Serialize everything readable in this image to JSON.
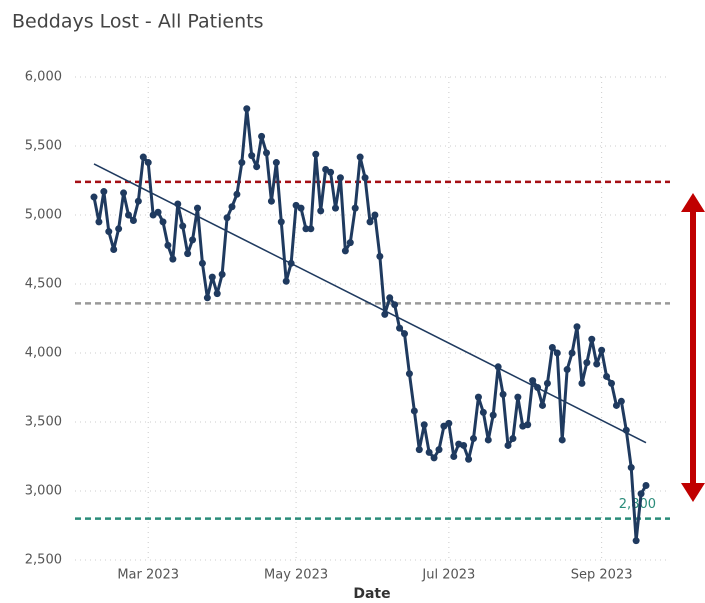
{
  "chart_data": {
    "type": "line",
    "title": "Beddays Lost - All Patients",
    "x_label": "Date",
    "categories": [
      null,
      null,
      null,
      null,
      null,
      null,
      null,
      null,
      null,
      null,
      null,
      "Mar 2023",
      null,
      null,
      null,
      null,
      null,
      null,
      null,
      null,
      null,
      null,
      null,
      null,
      null,
      null,
      null,
      null,
      null,
      null,
      null,
      null,
      null,
      null,
      null,
      null,
      null,
      null,
      null,
      null,
      null,
      "May 2023",
      null,
      null,
      null,
      null,
      null,
      null,
      null,
      null,
      null,
      null,
      null,
      null,
      null,
      null,
      null,
      null,
      null,
      null,
      null,
      null,
      null,
      null,
      null,
      null,
      null,
      null,
      null,
      null,
      null,
      null,
      "Jul 2023",
      null,
      null,
      null,
      null,
      null,
      null,
      null,
      null,
      null,
      null,
      null,
      null,
      null,
      null,
      null,
      null,
      null,
      null,
      null,
      null,
      null,
      null,
      null,
      null,
      null,
      null,
      null,
      null,
      null,
      null,
      "Sep 2023",
      null,
      null,
      null,
      null,
      null,
      null,
      null,
      null,
      null
    ],
    "series": [
      {
        "name": "Beddays Lost",
        "color": "#1f3a5f",
        "values": [
          5130,
          4950,
          5170,
          4880,
          4750,
          4900,
          5160,
          5000,
          4960,
          5100,
          5420,
          5380,
          5000,
          5020,
          4950,
          4780,
          4680,
          5080,
          4920,
          4720,
          4820,
          5050,
          4650,
          4400,
          4550,
          4430,
          4570,
          4980,
          5060,
          5150,
          5380,
          5770,
          5430,
          5350,
          5570,
          5450,
          5100,
          5380,
          4950,
          4520,
          4650,
          5070,
          5050,
          4900,
          4900,
          5440,
          5030,
          5330,
          5310,
          5050,
          5270,
          4740,
          4800,
          5050,
          5420,
          5270,
          4950,
          5000,
          4700,
          4280,
          4400,
          4350,
          4180,
          4140,
          3850,
          3580,
          3300,
          3480,
          3280,
          3240,
          3300,
          3470,
          3490,
          3250,
          3340,
          3330,
          3230,
          3380,
          3680,
          3570,
          3370,
          3550,
          3900,
          3700,
          3330,
          3380,
          3680,
          3470,
          3480,
          3800,
          3750,
          3620,
          3780,
          4040,
          4000,
          3370,
          3880,
          4000,
          4190,
          3780,
          3930,
          4100,
          3920,
          4020,
          3830,
          3780,
          3620,
          3650,
          3440,
          3170,
          2640,
          2980,
          3040
        ]
      }
    ],
    "trend": {
      "color": "#1f3a5f",
      "start": 5370,
      "end": 3350
    },
    "reference_lines": [
      {
        "value": 5240,
        "color": "#a50f15"
      },
      {
        "value": 4360,
        "color": "#999999"
      },
      {
        "value": 2800,
        "color": "#2a8c7a",
        "label": "2,800"
      }
    ],
    "ylim": [
      2500,
      6000
    ],
    "yticks": [
      {
        "value": 2500,
        "label": "2,500"
      },
      {
        "value": 3000,
        "label": "3,000"
      },
      {
        "value": 3500,
        "label": "3,500"
      },
      {
        "value": 4000,
        "label": "4,000"
      },
      {
        "value": 4500,
        "label": "4,500"
      },
      {
        "value": 5000,
        "label": "5,000"
      },
      {
        "value": 5500,
        "label": "5,500"
      },
      {
        "value": 6000,
        "label": "6,000"
      }
    ],
    "grid": true
  }
}
